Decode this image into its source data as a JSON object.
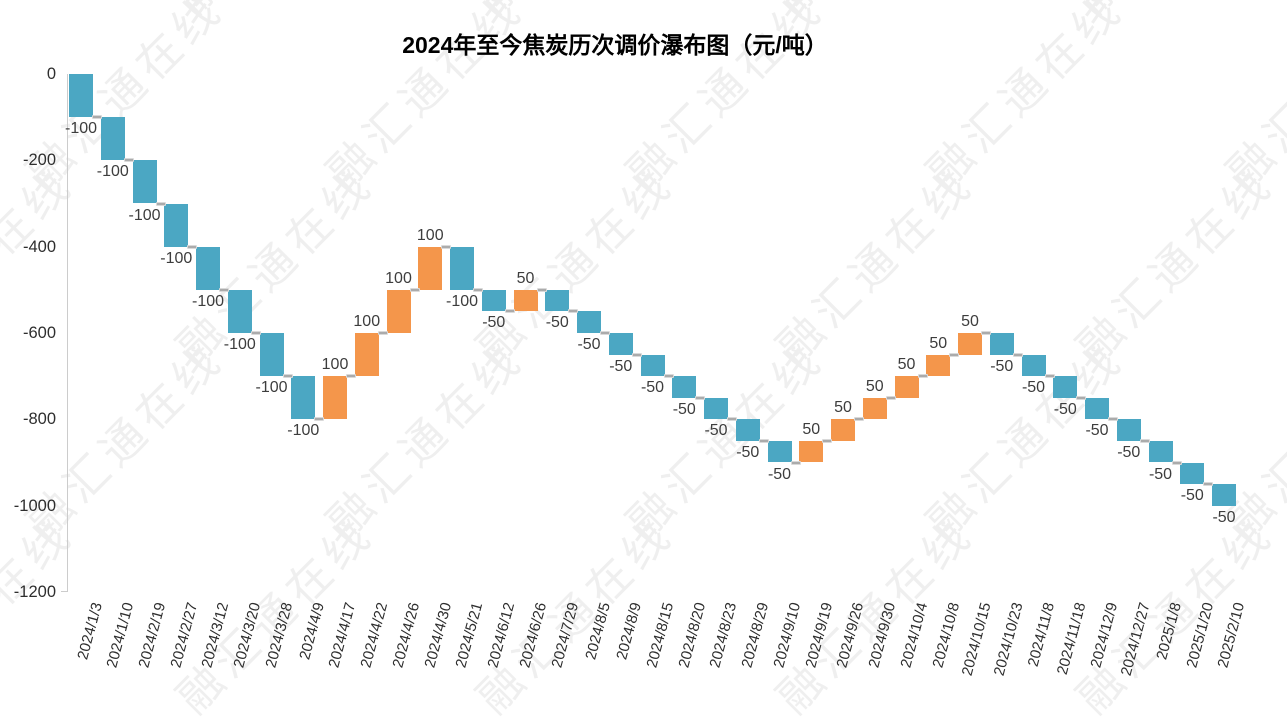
{
  "watermark": "融汇通在线",
  "chart_data": {
    "type": "bar",
    "subtype": "waterfall",
    "title": "2024年至今焦炭历次调价瀑布图（元/吨）",
    "unit": "元/吨",
    "categories": [
      "2024/1/3",
      "2024/1/10",
      "2024/2/19",
      "2024/2/27",
      "2024/3/12",
      "2024/3/20",
      "2024/3/28",
      "2024/4/9",
      "2024/4/17",
      "2024/4/22",
      "2024/4/26",
      "2024/4/30",
      "2024/5/21",
      "2024/6/12",
      "2024/6/26",
      "2024/7/29",
      "2024/8/5",
      "2024/8/9",
      "2024/8/15",
      "2024/8/20",
      "2024/8/23",
      "2024/8/29",
      "2024/9/10",
      "2024/9/19",
      "2024/9/26",
      "2024/9/30",
      "2024/10/4",
      "2024/10/8",
      "2024/10/15",
      "2024/10/23",
      "2024/11/8",
      "2024/11/18",
      "2024/12/9",
      "2024/12/27",
      "2025/1/8",
      "2025/1/20",
      "2025/2/10"
    ],
    "values": [
      -100,
      -100,
      -100,
      -100,
      -100,
      -100,
      -100,
      -100,
      100,
      100,
      100,
      100,
      -100,
      -50,
      50,
      -50,
      -50,
      -50,
      -50,
      -50,
      -50,
      -50,
      -50,
      50,
      50,
      50,
      50,
      50,
      50,
      -50,
      -50,
      -50,
      -50,
      -50,
      -50,
      -50,
      -50
    ],
    "cumulative_start": 0,
    "cumulative_end": -1000,
    "ylim": [
      -1200,
      0
    ],
    "yticks": [
      0,
      -200,
      -400,
      -600,
      -800,
      -1000,
      -1200
    ],
    "xlabel": "",
    "ylabel": "",
    "grid": false,
    "legend_position": "none",
    "colors": {
      "decrease": "#4BA7C3",
      "increase": "#F4964B",
      "connector": "#ABABAB",
      "value_label": "#3D3D3D",
      "axis_text": "#2E2E2E",
      "axis_line": "#CCCCCC",
      "title": "#000000",
      "watermark": "#EFEFEF",
      "background": "#FFFFFF"
    }
  }
}
